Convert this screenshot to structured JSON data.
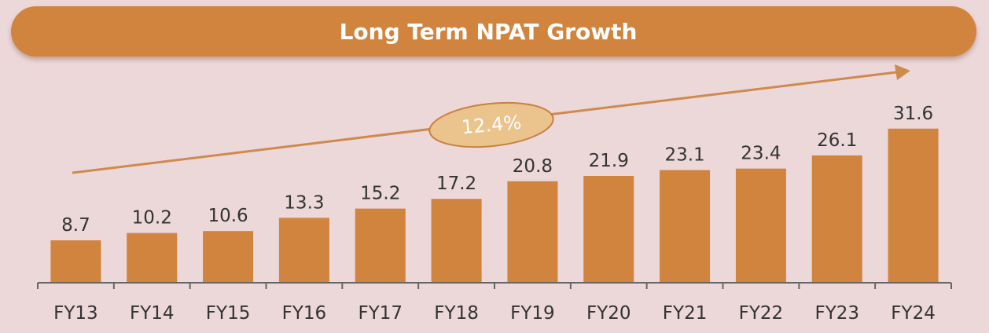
{
  "title": "Long Term NPAT Growth",
  "cagr_label": "12.4%",
  "colors": {
    "background": "#ecd7d9",
    "bar": "#d0843e",
    "banner": "#d0843e",
    "ellipse_fill": "#ebc48d",
    "ellipse_stroke": "#c9813f",
    "arrow": "#cf8a4f",
    "text": "#333333",
    "axis": "#666666"
  },
  "chart_data": {
    "type": "bar",
    "title": "Long Term NPAT Growth",
    "categories": [
      "FY13",
      "FY14",
      "FY15",
      "FY16",
      "FY17",
      "FY18",
      "FY19",
      "FY20",
      "FY21",
      "FY22",
      "FY23",
      "FY24"
    ],
    "values": [
      8.7,
      10.2,
      10.6,
      13.3,
      15.2,
      17.2,
      20.8,
      21.9,
      23.1,
      23.4,
      26.1,
      31.6
    ],
    "data_labels": [
      "8.7",
      "10.2",
      "10.6",
      "13.3",
      "15.2",
      "17.2",
      "20.8",
      "21.9",
      "23.1",
      "23.4",
      "26.1",
      "31.6"
    ],
    "annotations": [
      "12.4%"
    ],
    "xlabel": "",
    "ylabel": "",
    "ylim": [
      0,
      34
    ],
    "grid": false,
    "legend": "none"
  }
}
